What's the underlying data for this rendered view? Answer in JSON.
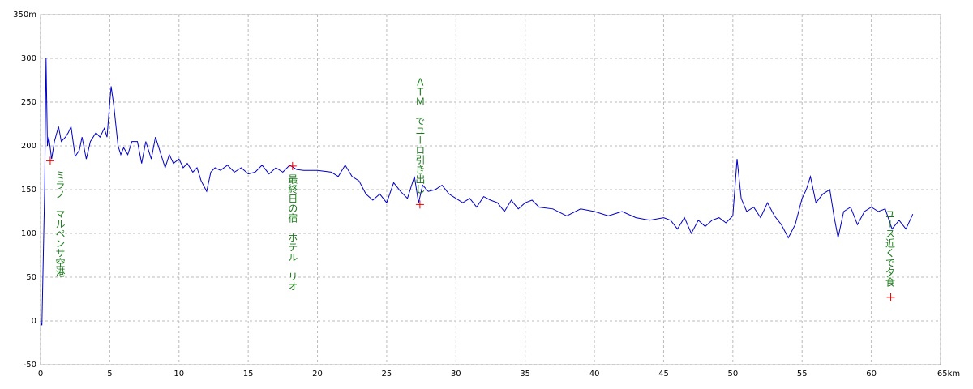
{
  "chart_data": {
    "type": "line",
    "x": [
      0,
      0.1,
      0.3,
      0.4,
      0.5,
      0.6,
      0.8,
      1.0,
      1.3,
      1.5,
      1.8,
      2.0,
      2.2,
      2.5,
      2.8,
      3.0,
      3.3,
      3.6,
      4.0,
      4.3,
      4.6,
      4.8,
      5.0,
      5.1,
      5.3,
      5.6,
      5.8,
      6.0,
      6.3,
      6.6,
      7.0,
      7.3,
      7.6,
      8.0,
      8.3,
      8.6,
      9.0,
      9.3,
      9.6,
      10.0,
      10.3,
      10.6,
      11.0,
      11.3,
      11.6,
      12.0,
      12.3,
      12.6,
      13.0,
      13.5,
      14.0,
      14.5,
      15.0,
      15.5,
      16.0,
      16.5,
      17.0,
      17.5,
      18.0,
      18.5,
      19.0,
      20.0,
      21.0,
      21.5,
      22.0,
      22.5,
      23.0,
      23.5,
      24.0,
      24.5,
      25.0,
      25.5,
      26.0,
      26.5,
      27.0,
      27.3,
      27.6,
      28.0,
      28.5,
      29.0,
      29.5,
      30.0,
      30.5,
      31.0,
      31.5,
      32.0,
      32.5,
      33.0,
      33.5,
      34.0,
      34.5,
      35.0,
      35.5,
      36.0,
      37.0,
      38.0,
      39.0,
      40.0,
      41.0,
      42.0,
      43.0,
      44.0,
      45.0,
      45.5,
      46.0,
      46.5,
      47.0,
      47.5,
      48.0,
      48.5,
      49.0,
      49.5,
      50.0,
      50.3,
      50.6,
      51.0,
      51.5,
      52.0,
      52.5,
      53.0,
      53.5,
      54.0,
      54.5,
      55.0,
      55.3,
      55.6,
      56.0,
      56.5,
      57.0,
      57.3,
      57.6,
      58.0,
      58.5,
      59.0,
      59.5,
      60.0,
      60.5,
      61.0,
      61.5,
      62.0,
      62.5,
      63.0
    ],
    "values": [
      0,
      -5,
      150,
      300,
      200,
      210,
      185,
      205,
      222,
      205,
      210,
      215,
      222,
      188,
      195,
      210,
      185,
      205,
      215,
      210,
      220,
      210,
      250,
      268,
      245,
      200,
      190,
      198,
      190,
      205,
      205,
      180,
      205,
      185,
      210,
      195,
      175,
      190,
      180,
      185,
      175,
      180,
      170,
      175,
      160,
      148,
      170,
      175,
      172,
      178,
      170,
      175,
      168,
      170,
      178,
      168,
      175,
      170,
      178,
      173,
      172,
      172,
      170,
      165,
      178,
      165,
      160,
      145,
      138,
      145,
      135,
      158,
      148,
      140,
      165,
      135,
      155,
      148,
      150,
      155,
      145,
      140,
      135,
      140,
      130,
      142,
      138,
      135,
      125,
      138,
      128,
      135,
      138,
      130,
      128,
      120,
      128,
      125,
      120,
      125,
      118,
      115,
      118,
      115,
      105,
      118,
      100,
      115,
      108,
      115,
      118,
      112,
      120,
      185,
      140,
      125,
      130,
      118,
      135,
      120,
      110,
      95,
      110,
      140,
      150,
      165,
      135,
      145,
      150,
      120,
      95,
      125,
      130,
      110,
      125,
      130,
      125,
      128,
      105,
      115,
      105,
      122
    ],
    "color": "#0000c8",
    "xlim": [
      0,
      65
    ],
    "ylim": [
      -50,
      350
    ],
    "xticks": [
      0,
      5,
      10,
      15,
      20,
      25,
      30,
      35,
      40,
      45,
      50,
      55,
      60,
      {
        "value": 65,
        "label": "65km"
      }
    ],
    "yticks": [
      -50,
      0,
      50,
      100,
      150,
      200,
      250,
      300,
      {
        "value": 350,
        "label": "350m"
      }
    ],
    "grid": true,
    "annotations": [
      {
        "text": "ミラノ　マルペンサ空港",
        "x": 0.7,
        "y": 183
      },
      {
        "text": "最終日の宿　ホテル　リオ",
        "x": 18.2,
        "y": 177
      },
      {
        "text": "ＡＴＭ　でユーロ引き出し",
        "x": 27.4,
        "y": 133
      },
      {
        "text": "ユース近くで夕食",
        "x": 61.4,
        "y": 27
      }
    ]
  }
}
